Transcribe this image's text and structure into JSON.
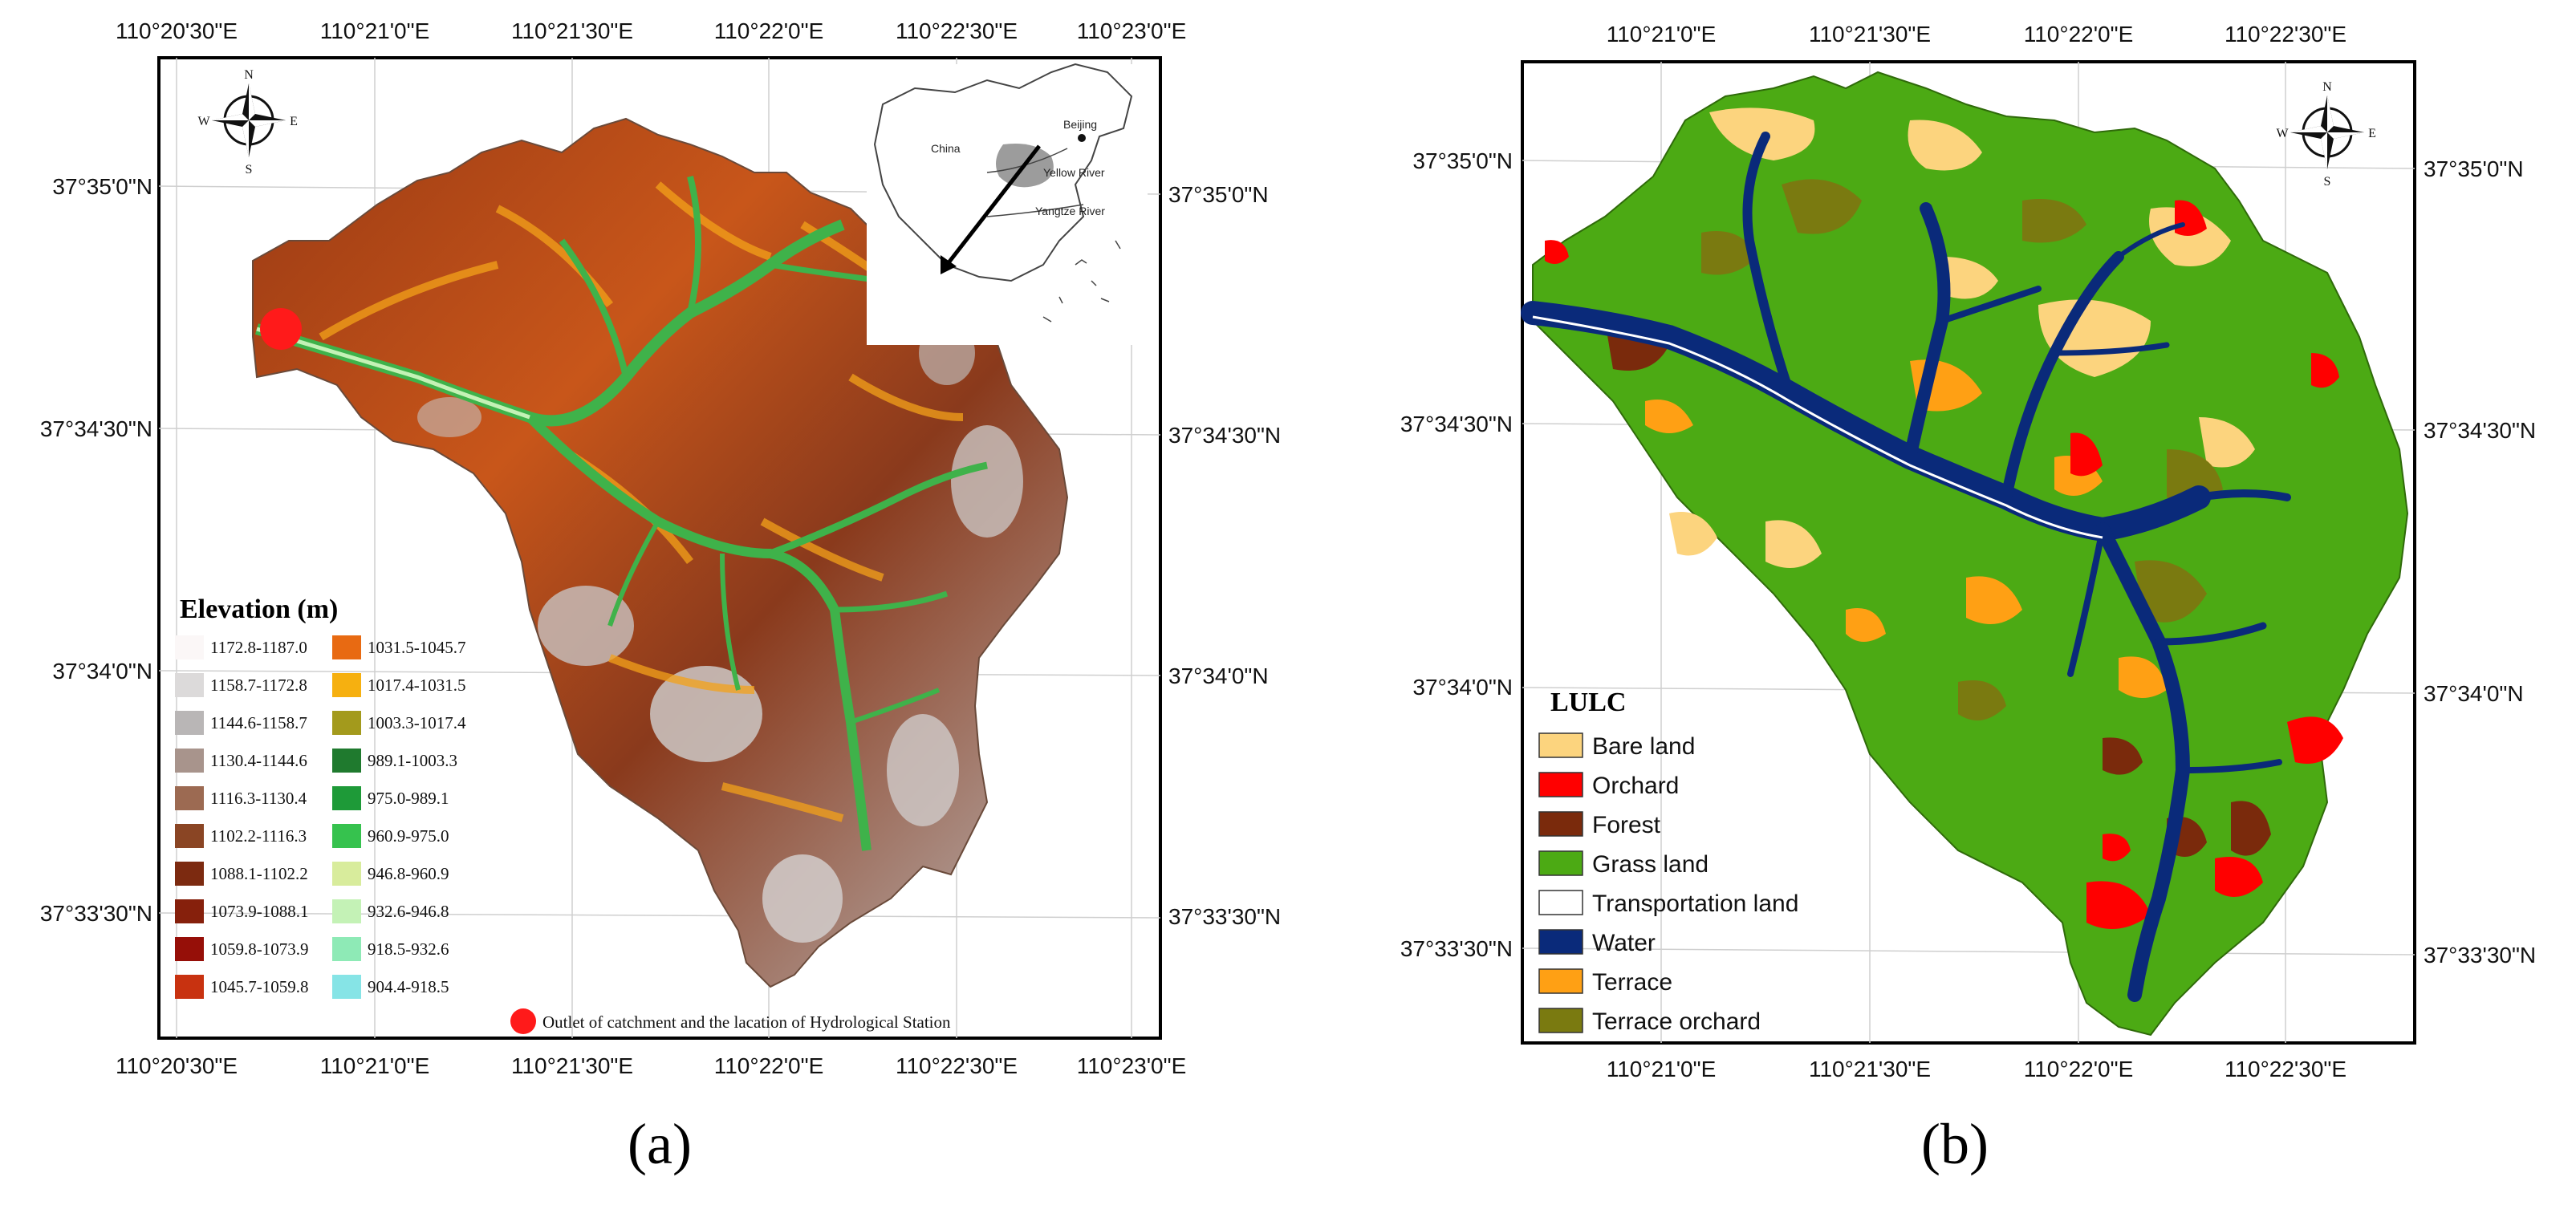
{
  "panel_a": {
    "label": "(a)",
    "top_longitudes": [
      "110°20'30\"E",
      "110°21'0\"E",
      "110°21'30\"E",
      "110°22'0\"E",
      "110°22'30\"E",
      "110°23'0\"E"
    ],
    "bottom_longitudes": [
      "110°20'30\"E",
      "110°21'0\"E",
      "110°21'30\"E",
      "110°22'0\"E",
      "110°22'30\"E",
      "110°23'0\"E"
    ],
    "left_latitudes": [
      "37°35'0\"N",
      "37°34'30\"N",
      "37°34'0\"N",
      "37°33'30\"N"
    ],
    "right_latitudes": [
      "37°35'0\"N",
      "37°34'30\"N",
      "37°34'0\"N",
      "37°33'30\"N"
    ],
    "legend_title": "Elevation (m)",
    "legend": [
      {
        "label": "1172.8-1187.0",
        "color": "#fbf7f7"
      },
      {
        "label": "1158.7-1172.8",
        "color": "#dcdada"
      },
      {
        "label": "1144.6-1158.7",
        "color": "#b9b6b6"
      },
      {
        "label": "1130.4-1144.6",
        "color": "#a8948c"
      },
      {
        "label": "1116.3-1130.4",
        "color": "#9c6a52"
      },
      {
        "label": "1102.2-1116.3",
        "color": "#8a4524"
      },
      {
        "label": "1088.1-1102.2",
        "color": "#7c2a10"
      },
      {
        "label": "1073.9-1088.1",
        "color": "#86200c"
      },
      {
        "label": "1059.8-1073.9",
        "color": "#960f08"
      },
      {
        "label": "1045.7-1059.8",
        "color": "#c83210"
      },
      {
        "label": "1031.5-1045.7",
        "color": "#e86a12"
      },
      {
        "label": "1017.4-1031.5",
        "color": "#f6b010"
      },
      {
        "label": "1003.3-1017.4",
        "color": "#a39a1c"
      },
      {
        "label": "989.1-1003.3",
        "color": "#1f7a2e"
      },
      {
        "label": "975.0-989.1",
        "color": "#1e9a38"
      },
      {
        "label": "960.9-975.0",
        "color": "#36c24e"
      },
      {
        "label": "946.8-960.9",
        "color": "#d8ec9c"
      },
      {
        "label": "932.6-946.8",
        "color": "#c4f2b6"
      },
      {
        "label": "918.5-932.6",
        "color": "#8eeab6"
      },
      {
        "label": "904.4-918.5",
        "color": "#86e4e6"
      }
    ],
    "outlet_label": "Outlet of catchment and the lacation of Hydrological Station",
    "outlet_color": "#ff1a1a",
    "inset": {
      "china": "China",
      "beijing": "Beijing",
      "yellow_river": "Yellow River",
      "yangtze_river": "Yangtze River"
    },
    "compass": {
      "n": "N",
      "s": "S",
      "e": "E",
      "w": "W"
    }
  },
  "panel_b": {
    "label": "(b)",
    "top_longitudes": [
      "110°21'0\"E",
      "110°21'30\"E",
      "110°22'0\"E",
      "110°22'30\"E"
    ],
    "bottom_longitudes": [
      "110°21'0\"E",
      "110°21'30\"E",
      "110°22'0\"E",
      "110°22'30\"E"
    ],
    "left_latitudes": [
      "37°35'0\"N",
      "37°34'30\"N",
      "37°34'0\"N",
      "37°33'30\"N"
    ],
    "right_latitudes": [
      "37°35'0\"N",
      "37°34'30\"N",
      "37°34'0\"N",
      "37°33'30\"N"
    ],
    "legend_title": "LULC",
    "legend": [
      {
        "label": "Bare land",
        "color": "#fcd47e"
      },
      {
        "label": "Orchard",
        "color": "#ff0000"
      },
      {
        "label": "Forest",
        "color": "#7a2a0c"
      },
      {
        "label": "Grass land",
        "color": "#4caa14"
      },
      {
        "label": "Transportation land",
        "color": "#ffffff"
      },
      {
        "label": "Water",
        "color": "#0a2a7a"
      },
      {
        "label": "Terrace",
        "color": "#ffa014"
      },
      {
        "label": "Terrace orchard",
        "color": "#7a7a10"
      }
    ],
    "compass": {
      "n": "N",
      "s": "S",
      "e": "E",
      "w": "W"
    }
  }
}
